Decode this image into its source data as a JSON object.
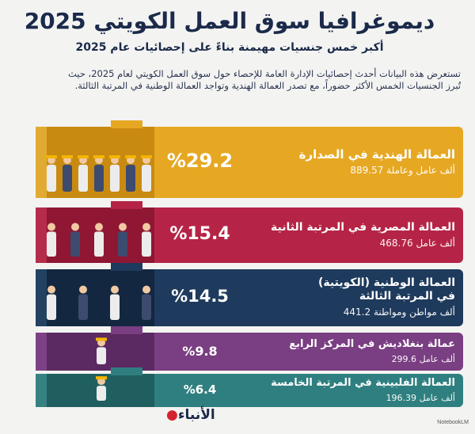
{
  "title": "ديموغرافيا سوق العمل الكويتي 2025",
  "subtitle": "أكبر خمس جنسيات مهيمنة بناءً على إحصائيات عام 2025",
  "intro_line1": "تستعرض هذه البيانات أحدث إحصائيات الإدارة العامة للإحصاء حول سوق العمل الكويتي لعام 2025، حيث",
  "intro_line2": "تُبرز الجنسيات الخمس الأكثر حضوراً، مع تصدر العمالة الهندية وتواجد العمالة الوطنية في المرتبة الثالثة.",
  "logo_text": "الأنباء",
  "credit": "NotebookLM",
  "colors": {
    "background": "#f3f4f2",
    "title": "#1b2a4a",
    "india": "#e6a823",
    "egypt": "#b52446",
    "kuwait": "#1e3a5c",
    "bangladesh": "#7a3e82",
    "philippines": "#2f7f80"
  },
  "chart_data": {
    "type": "bar",
    "title": "ديموغرافيا سوق العمل الكويتي 2025",
    "categories": [
      "العمالة الهندية في الصدارة",
      "العمالة المصرية في المرتبة الثانية",
      "العمالة الوطنية (الكويتية) في المرتبة الثالثة",
      "عمالة بنغلاديش في المركز الرابع",
      "العمالة الفلبينية في المرتبة الخامسة"
    ],
    "series": [
      {
        "values": [
          29.2,
          15.4,
          14.5,
          9.8,
          6.4
        ]
      }
    ],
    "items": [
      {
        "label": "العمالة الهندية في الصدارة",
        "label2": "",
        "pct": 29.2,
        "pct_text": "%29.2",
        "value_text": "889.57 ألف عامل وعاملة",
        "color": "#e6a823",
        "dark": "#c98a12",
        "light": "#f2c24a",
        "icon": "workers-group-icon"
      },
      {
        "label": "العمالة المصرية في المرتبة الثانية",
        "label2": "",
        "pct": 15.4,
        "pct_text": "%15.4",
        "value_text": "468.76 ألف عامل",
        "color": "#b52446",
        "dark": "#8f1733",
        "light": "#cf3a5c",
        "icon": "professionals-group-icon"
      },
      {
        "label": "العمالة الوطنية (الكويتية)",
        "label2": "في المرتبة الثالثة",
        "pct": 14.5,
        "pct_text": "%14.5",
        "value_text": "441.2 ألف مواطن ومواطنة",
        "color": "#1e3a5c",
        "dark": "#132840",
        "light": "#2f5379",
        "icon": "kuwaiti-citizens-icon"
      },
      {
        "label": "عمالة بنغلاديش في المركز الرابع",
        "label2": "",
        "pct": 9.8,
        "pct_text": "%9.8",
        "value_text": "299.6 ألف عامل",
        "color": "#7a3e82",
        "dark": "#5b2a62",
        "light": "#94549c",
        "icon": "single-worker-icon"
      },
      {
        "label": "العمالة الفلبينية في المرتبة الخامسة",
        "label2": "",
        "pct": 6.4,
        "pct_text": "%6.4",
        "value_text": "196.39 ألف عامل",
        "color": "#2f7f80",
        "dark": "#1f5f60",
        "light": "#46999a",
        "icon": "single-worker-icon"
      }
    ],
    "unit": "%",
    "ylim": [
      0,
      30
    ]
  }
}
